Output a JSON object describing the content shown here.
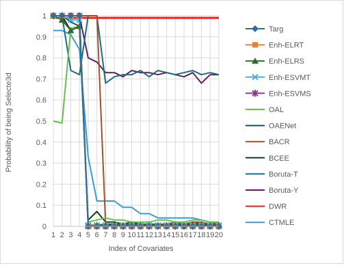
{
  "chart_data": {
    "type": "line",
    "xlabel": "Index of Covariates",
    "ylabel": "Probability of being Selecte3d",
    "x": [
      1,
      2,
      3,
      4,
      5,
      6,
      7,
      8,
      9,
      10,
      11,
      12,
      13,
      14,
      15,
      16,
      17,
      18,
      19,
      20
    ],
    "xlim": [
      1,
      20
    ],
    "ylim": [
      0,
      1
    ],
    "yticks": [
      0,
      0.1,
      0.2,
      0.3,
      0.4,
      0.5,
      0.6,
      0.7,
      0.8,
      0.9,
      1
    ],
    "ytick_labels": [
      "0",
      "0.1",
      "0.2",
      "0.3",
      "0.4",
      "0.5",
      "0.6",
      "0.7",
      "0.8",
      "0.9",
      "1"
    ],
    "grid": true,
    "legend": "right",
    "series": [
      {
        "name": "Targ",
        "color": "#2e6e9e",
        "marker": "diamond",
        "values": [
          1,
          1,
          1,
          1,
          0,
          0,
          0,
          0,
          0,
          0,
          0,
          0,
          0,
          0,
          0,
          0,
          0,
          0,
          0,
          0
        ]
      },
      {
        "name": "Enh-ELRT",
        "color": "#ed7d31",
        "marker": "square",
        "values": [
          1,
          1,
          1,
          1,
          0,
          0,
          0,
          0,
          0,
          0,
          0,
          0,
          0,
          0,
          0,
          0,
          0,
          0,
          0,
          0
        ]
      },
      {
        "name": "Enh-ELRS",
        "color": "#2f6b2f",
        "marker": "triangle",
        "values": [
          1,
          0.98,
          0.93,
          0.95,
          0.005,
          0.005,
          0.005,
          0.005,
          0.005,
          0.005,
          0.005,
          0.005,
          0.005,
          0.005,
          0.005,
          0.005,
          0.005,
          0.005,
          0.005,
          0.005
        ]
      },
      {
        "name": "Enh-ESVMT",
        "color": "#4aaee0",
        "marker": "x",
        "values": [
          1,
          1,
          0.98,
          0.98,
          0.005,
          0.005,
          0.005,
          0.005,
          0.005,
          0.005,
          0.005,
          0.005,
          0.005,
          0.005,
          0.005,
          0.005,
          0.005,
          0.005,
          0.005,
          0.005
        ]
      },
      {
        "name": "Enh-ESVMS",
        "color": "#8b3a8b",
        "marker": "star",
        "values": [
          1,
          1,
          1,
          1,
          0,
          0,
          0,
          0,
          0,
          0,
          0,
          0,
          0,
          0,
          0,
          0,
          0,
          0,
          0,
          0
        ]
      },
      {
        "name": "OAL",
        "color": "#6abf4b",
        "marker": "none",
        "values": [
          0.5,
          0.49,
          0.94,
          0.95,
          0.02,
          0.03,
          0.04,
          0.03,
          0.03,
          0.02,
          0.02,
          0.02,
          0.03,
          0.03,
          0.02,
          0.02,
          0.03,
          0.03,
          0.02,
          0.02
        ]
      },
      {
        "name": "OAENet",
        "color": "#1f4e5f",
        "marker": "none",
        "values": [
          1,
          1,
          0.97,
          0.95,
          0.005,
          0.005,
          0.01,
          0.01,
          0.005,
          0.01,
          0.005,
          0.01,
          0.005,
          0.01,
          0.005,
          0.01,
          0.01,
          0.005,
          0.01,
          0.005
        ]
      },
      {
        "name": "BACR",
        "color": "#a0522d",
        "marker": "none",
        "values": [
          1,
          1,
          1,
          1,
          1,
          1,
          0.01,
          0.01,
          0.01,
          0.01,
          0.01,
          0.01,
          0.01,
          0.01,
          0.02,
          0.01,
          0.02,
          0.02,
          0.01,
          0.02
        ]
      },
      {
        "name": "BCEE",
        "color": "#133d13",
        "marker": "none",
        "values": [
          1,
          1,
          0.93,
          0.95,
          0.03,
          0.07,
          0.02,
          0.02,
          0.01,
          0.02,
          0.01,
          0.01,
          0.01,
          0.01,
          0.01,
          0.01,
          0.02,
          0.01,
          0.01,
          0.005
        ]
      },
      {
        "name": "Boruta-T",
        "color": "#1e6b80",
        "marker": "none",
        "values": [
          1,
          1,
          0.74,
          0.72,
          1,
          1,
          0.68,
          0.71,
          0.72,
          0.72,
          0.74,
          0.71,
          0.74,
          0.73,
          0.72,
          0.73,
          0.74,
          0.72,
          0.73,
          0.72
        ]
      },
      {
        "name": "Boruta-Y",
        "color": "#5e1f5e",
        "marker": "none",
        "values": [
          1,
          1,
          1,
          1,
          0.8,
          0.78,
          0.73,
          0.73,
          0.71,
          0.74,
          0.73,
          0.73,
          0.72,
          0.73,
          0.72,
          0.71,
          0.73,
          0.68,
          0.72,
          0.72
        ]
      },
      {
        "name": "DWR",
        "color": "#ff1a1a",
        "marker": "none",
        "values": [
          0.99,
          0.99,
          0.99,
          0.99,
          0.99,
          0.99,
          0.99,
          0.99,
          0.99,
          0.99,
          0.99,
          0.99,
          0.99,
          0.99,
          0.99,
          0.99,
          0.99,
          0.99,
          0.99,
          0.99
        ]
      },
      {
        "name": "CTMLE",
        "color": "#3a9ad9",
        "marker": "none",
        "values": [
          0.93,
          0.93,
          0.91,
          0.84,
          0.33,
          0.12,
          0.12,
          0.12,
          0.09,
          0.09,
          0.06,
          0.06,
          0.04,
          0.04,
          0.04,
          0.04,
          0.04,
          0.03,
          0.02,
          0.01
        ]
      }
    ]
  }
}
